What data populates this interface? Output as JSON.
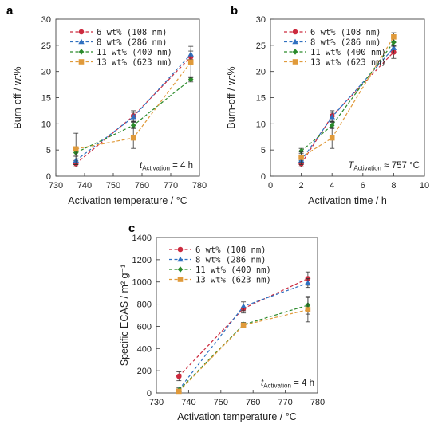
{
  "chart_data": [
    {
      "type": "line",
      "panel": "a",
      "xlabel": "Activation temperature / °C",
      "ylabel": "Burn-off / wt%",
      "xlim": [
        730,
        780
      ],
      "ylim": [
        0,
        30
      ],
      "xticks": [
        730,
        740,
        750,
        760,
        770,
        780
      ],
      "yticks": [
        0,
        5,
        10,
        15,
        20,
        25,
        30
      ],
      "annotation": {
        "sym": "t",
        "sub": "Activation",
        "rest": " = 4 h"
      },
      "legend_position": "top-left",
      "series": [
        {
          "name": "6 wt% (108 nm)",
          "color": "#cc2a3e",
          "marker": "circle",
          "x": [
            737,
            757,
            777
          ],
          "y": [
            2.4,
            11.5,
            22.8
          ],
          "err": [
            0.6,
            1.0,
            1.1
          ]
        },
        {
          "name": "8 wt% (286 nm)",
          "color": "#2f70c0",
          "marker": "triangle",
          "x": [
            737,
            757,
            777
          ],
          "y": [
            3.0,
            11.3,
            23.3
          ],
          "err": [
            0.8,
            0.9,
            1.0
          ]
        },
        {
          "name": "11 wt% (400 nm)",
          "color": "#2a8a2a",
          "marker": "diamond",
          "x": [
            737,
            757,
            777
          ],
          "y": [
            4.5,
            9.7,
            18.5
          ],
          "err": [
            0.5,
            0.6,
            0.5
          ]
        },
        {
          "name": "13 wt% (623 nm)",
          "color": "#e09a3a",
          "marker": "square",
          "x": [
            737,
            757,
            777
          ],
          "y": [
            5.2,
            7.3,
            21.8
          ],
          "err": [
            3.0,
            2.0,
            3.0
          ]
        }
      ]
    },
    {
      "type": "line",
      "panel": "b",
      "xlabel": "Activation time / h",
      "ylabel": "Burn-off / wt%",
      "xlim": [
        0,
        10
      ],
      "ylim": [
        0,
        30
      ],
      "xticks": [
        0,
        2,
        4,
        6,
        8,
        10
      ],
      "yticks": [
        0,
        5,
        10,
        15,
        20,
        25,
        30
      ],
      "annotation": {
        "sym": "T",
        "sub": "Activation",
        "rest": " ≈ 757 °C"
      },
      "legend_position": "top-left",
      "series": [
        {
          "name": "6 wt% (108 nm)",
          "color": "#cc2a3e",
          "marker": "circle",
          "x": [
            2,
            4,
            8
          ],
          "y": [
            2.4,
            11.5,
            23.7
          ],
          "err": [
            0.6,
            1.0,
            1.2
          ]
        },
        {
          "name": "8 wt% (286 nm)",
          "color": "#2f70c0",
          "marker": "triangle",
          "x": [
            2,
            4,
            8
          ],
          "y": [
            3.0,
            11.3,
            24.5
          ],
          "err": [
            0.8,
            0.9,
            1.0
          ]
        },
        {
          "name": "11 wt% (400 nm)",
          "color": "#2a8a2a",
          "marker": "diamond",
          "x": [
            2,
            4,
            8
          ],
          "y": [
            4.8,
            9.7,
            25.6
          ],
          "err": [
            0.5,
            0.6,
            0.8
          ]
        },
        {
          "name": "13 wt% (623 nm)",
          "color": "#e09a3a",
          "marker": "square",
          "x": [
            2,
            4,
            8
          ],
          "y": [
            3.6,
            7.3,
            26.6
          ],
          "err": [
            1.0,
            2.0,
            0.8
          ]
        }
      ]
    },
    {
      "type": "line",
      "panel": "c",
      "xlabel": "Activation temperature / °C",
      "ylabel": "Specific ECAS / m² g⁻¹",
      "xlim": [
        730,
        780
      ],
      "ylim": [
        0,
        1400
      ],
      "xticks": [
        730,
        740,
        750,
        760,
        770,
        780
      ],
      "yticks": [
        0,
        200,
        400,
        600,
        800,
        1000,
        1200,
        1400
      ],
      "annotation": {
        "sym": "t",
        "sub": "Activation",
        "rest": " = 4 h"
      },
      "legend_position": "top-left",
      "series": [
        {
          "name": "6 wt% (108 nm)",
          "color": "#cc2a3e",
          "marker": "circle",
          "x": [
            737,
            757,
            777
          ],
          "y": [
            150,
            760,
            1030
          ],
          "err": [
            40,
            40,
            60
          ]
        },
        {
          "name": "8 wt% (286 nm)",
          "color": "#2f70c0",
          "marker": "triangle",
          "x": [
            737,
            757,
            777
          ],
          "y": [
            30,
            780,
            990
          ],
          "err": [
            15,
            40,
            40
          ]
        },
        {
          "name": "11 wt% (400 nm)",
          "color": "#2a8a2a",
          "marker": "diamond",
          "x": [
            737,
            757,
            777
          ],
          "y": [
            25,
            615,
            790
          ],
          "err": [
            10,
            20,
            80
          ]
        },
        {
          "name": "13 wt% (623 nm)",
          "color": "#e09a3a",
          "marker": "square",
          "x": [
            737,
            757,
            777
          ],
          "y": [
            15,
            610,
            750
          ],
          "err": [
            10,
            20,
            110
          ]
        }
      ]
    }
  ]
}
